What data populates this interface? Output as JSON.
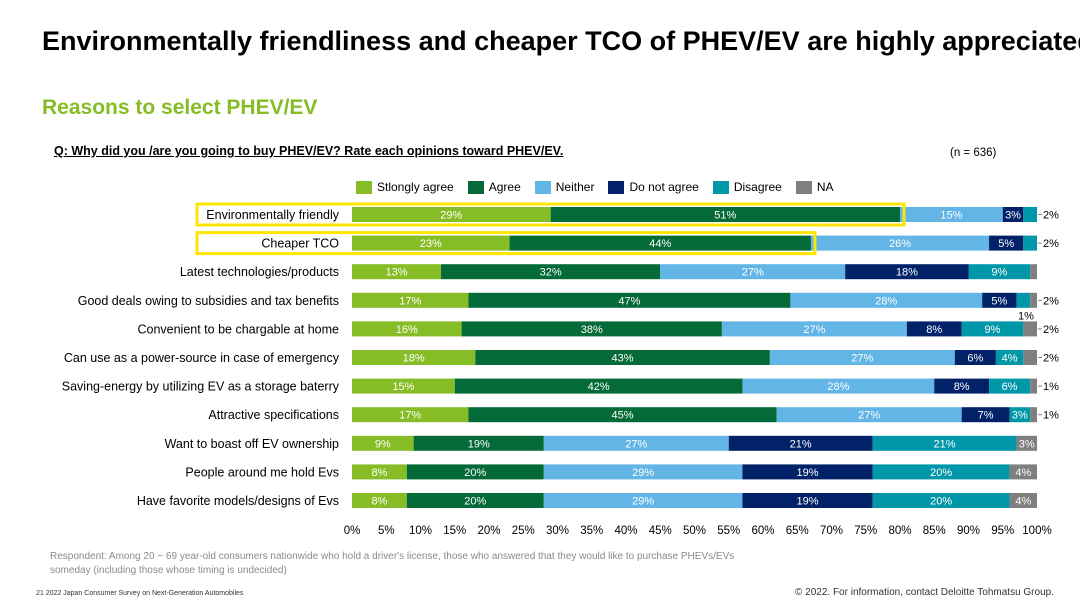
{
  "header": {
    "title": "Environmentally friendliness and cheaper TCO of PHEV/EV are highly appreciated.",
    "subtitle": "Reasons to select PHEV/EV",
    "question": "Q: Why did you /are you going to buy PHEV/EV? Rate each opinions toward PHEV/EV.",
    "n_label": "(n = 636)"
  },
  "colors": {
    "accent": "#86BC25",
    "highlight": "#FFE600",
    "series": [
      "#86BC25",
      "#046A38",
      "#62B5E5",
      "#012169",
      "#0097A9",
      "#7F7F7F"
    ]
  },
  "chart_data": {
    "type": "bar",
    "orientation": "horizontal-stacked-100",
    "categories": [
      "Environmentally friendly",
      "Cheaper TCO",
      "Latest technologies/products",
      "Good deals owing to subsidies and tax benefits",
      "Convenient to be chargable at home",
      "Can use as a power-source in case of emergency",
      "Saving-energy by utilizing EV as a storage baterry",
      "Attractive specifications",
      "Want to boast off EV ownership",
      "People around me hold Evs",
      "Have favorite models/designs of Evs"
    ],
    "series": [
      {
        "name": "Stlongly agree",
        "values": [
          29,
          23,
          13,
          17,
          16,
          18,
          15,
          17,
          9,
          8,
          8
        ]
      },
      {
        "name": "Agree",
        "values": [
          51,
          44,
          32,
          47,
          38,
          43,
          42,
          45,
          19,
          20,
          20
        ]
      },
      {
        "name": "Neither",
        "values": [
          15,
          26,
          27,
          28,
          27,
          27,
          28,
          27,
          27,
          29,
          29
        ]
      },
      {
        "name": "Do not agree",
        "values": [
          3,
          5,
          18,
          5,
          8,
          6,
          8,
          7,
          21,
          19,
          19
        ]
      },
      {
        "name": "Disagree",
        "values": [
          2,
          2,
          9,
          2,
          9,
          4,
          6,
          3,
          21,
          20,
          20
        ]
      },
      {
        "name": "NA",
        "values": [
          0,
          0,
          1,
          1,
          2,
          2,
          1,
          1,
          3,
          4,
          4
        ]
      }
    ],
    "outside_labels": [
      "2%",
      "2%",
      "",
      "2%",
      "2%",
      "2%",
      "1%",
      "1%",
      "",
      "",
      ""
    ],
    "callout_labels": [
      "",
      "",
      "",
      "",
      "1%",
      "",
      "",
      "",
      "",
      "",
      ""
    ],
    "x_ticks": [
      "0%",
      "5%",
      "10%",
      "15%",
      "20%",
      "25%",
      "30%",
      "35%",
      "40%",
      "45%",
      "50%",
      "55%",
      "60%",
      "65%",
      "70%",
      "75%",
      "80%",
      "85%",
      "90%",
      "95%",
      "100%"
    ],
    "xlim": [
      0,
      100
    ],
    "highlighted_categories": [
      "Environmentally friendly",
      "Cheaper TCO"
    ],
    "legend_position": "top"
  },
  "footnote": "Respondent: Among 20 ~ 69 year-old consumers nationwide who hold a driver's license, those who answered that they would like to purchase PHEVs/EVs someday (including those whose timing is undecided)",
  "footer": {
    "left": "21    2022 Japan Consumer Survey on Next-Generation Automobiles",
    "right": "© 2022. For information, contact Deloitte Tohmatsu Group."
  }
}
